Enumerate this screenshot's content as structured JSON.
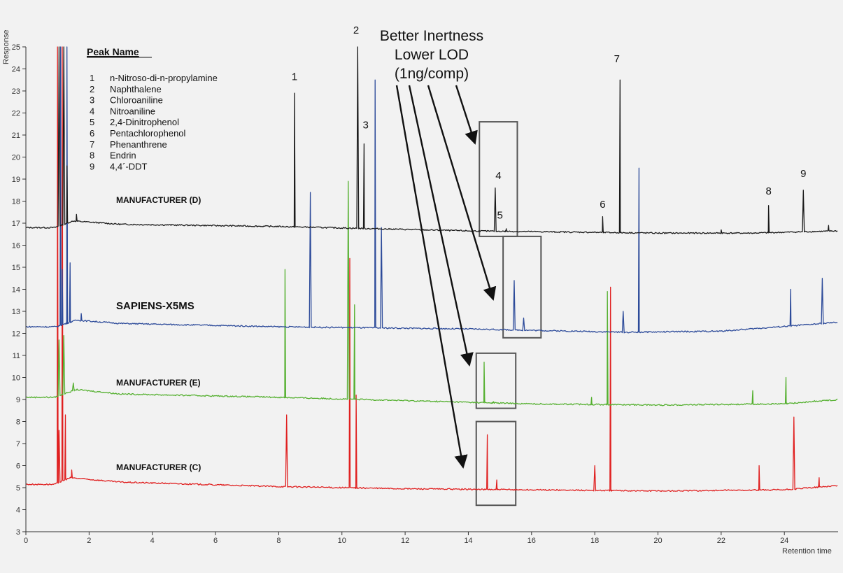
{
  "chart_data": {
    "type": "line",
    "xlabel": "Retention time",
    "ylabel": "Response",
    "xlim": [
      0,
      25.7
    ],
    "ylim": [
      3,
      25
    ],
    "x_ticks": [
      0,
      2,
      4,
      6,
      8,
      10,
      12,
      14,
      16,
      18,
      20,
      22,
      24
    ],
    "y_ticks": [
      3,
      4,
      5,
      6,
      7,
      8,
      9,
      10,
      11,
      12,
      13,
      14,
      15,
      16,
      17,
      18,
      19,
      20,
      21,
      22,
      23,
      24,
      25
    ],
    "legend": {
      "title": "Peak Name",
      "items": [
        {
          "num": "1",
          "name": "n-Nitroso-di-n-propylamine"
        },
        {
          "num": "2",
          "name": "Naphthalene"
        },
        {
          "num": "3",
          "name": "Chloroaniline"
        },
        {
          "num": "4",
          "name": "Nitroaniline"
        },
        {
          "num": "5",
          "name": "2,4-Dinitrophenol"
        },
        {
          "num": "6",
          "name": "Pentachlorophenol"
        },
        {
          "num": "7",
          "name": "Phenanthrene"
        },
        {
          "num": "8",
          "name": "Endrin"
        },
        {
          "num": "9",
          "name": "4,4´-DDT"
        }
      ]
    },
    "callout": [
      "Better Inertness",
      "Lower LOD",
      "(1ng/comp)"
    ],
    "series": [
      {
        "name": "MANUFACTURER (D)",
        "color": "#1a1a1a",
        "baseline": [
          [
            0.0,
            16.8
          ],
          [
            0.9,
            16.8
          ],
          [
            1.5,
            17.1
          ],
          [
            3,
            16.95
          ],
          [
            8,
            16.85
          ],
          [
            14,
            16.65
          ],
          [
            20,
            16.55
          ],
          [
            23,
            16.55
          ],
          [
            25.7,
            16.65
          ]
        ],
        "peaks": [
          [
            1.05,
            25.0
          ],
          [
            1.2,
            25.0
          ],
          [
            1.3,
            19.6
          ],
          [
            1.6,
            17.4
          ],
          [
            8.5,
            22.9
          ],
          [
            10.5,
            25.0
          ],
          [
            10.7,
            20.6
          ],
          [
            14.85,
            18.6
          ],
          [
            15.2,
            16.75
          ],
          [
            18.25,
            17.3
          ],
          [
            18.8,
            23.5
          ],
          [
            22,
            16.7
          ],
          [
            23.5,
            17.8
          ],
          [
            24.6,
            18.5
          ],
          [
            25.4,
            16.9
          ]
        ],
        "peak_labels": [
          {
            "num": "1",
            "x": 8.5,
            "y": 23.5
          },
          {
            "num": "2",
            "x": 10.45,
            "y": 25.6
          },
          {
            "num": "3",
            "x": 10.75,
            "y": 21.3
          },
          {
            "num": "4",
            "x": 14.95,
            "y": 19.0
          },
          {
            "num": "5",
            "x": 15.0,
            "y": 17.2
          },
          {
            "num": "6",
            "x": 18.25,
            "y": 17.7
          },
          {
            "num": "7",
            "x": 18.7,
            "y": 24.3
          },
          {
            "num": "8",
            "x": 23.5,
            "y": 18.3
          },
          {
            "num": "9",
            "x": 24.6,
            "y": 19.1
          }
        ]
      },
      {
        "name": "SAPIENS-X5MS",
        "color": "#2d4b9a",
        "baseline": [
          [
            0.0,
            12.3
          ],
          [
            0.95,
            12.3
          ],
          [
            1.6,
            12.6
          ],
          [
            3,
            12.45
          ],
          [
            8,
            12.3
          ],
          [
            14,
            12.2
          ],
          [
            19,
            12.05
          ],
          [
            22,
            12.1
          ],
          [
            25.7,
            12.5
          ]
        ],
        "peaks": [
          [
            1.1,
            25.0
          ],
          [
            1.15,
            14.9
          ],
          [
            1.3,
            25.0
          ],
          [
            1.4,
            15.2
          ],
          [
            1.75,
            12.9
          ],
          [
            9.0,
            18.4
          ],
          [
            11.05,
            23.5
          ],
          [
            11.25,
            16.8
          ],
          [
            15.45,
            14.4
          ],
          [
            15.75,
            12.7
          ],
          [
            18.9,
            13.0
          ],
          [
            19.4,
            19.5
          ],
          [
            24.2,
            14.0
          ],
          [
            25.2,
            14.5
          ]
        ]
      },
      {
        "name": "MANUFACTURER (E)",
        "color": "#55b030",
        "baseline": [
          [
            0.0,
            9.1
          ],
          [
            0.9,
            9.1
          ],
          [
            1.6,
            9.45
          ],
          [
            3,
            9.25
          ],
          [
            8,
            9.1
          ],
          [
            12,
            8.95
          ],
          [
            16,
            8.8
          ],
          [
            20,
            8.75
          ],
          [
            24,
            8.8
          ],
          [
            25.7,
            9.0
          ]
        ],
        "peaks": [
          [
            1.05,
            11.7
          ],
          [
            1.2,
            11.9
          ],
          [
            1.5,
            9.75
          ],
          [
            8.2,
            14.9
          ],
          [
            10.2,
            18.9
          ],
          [
            10.4,
            13.3
          ],
          [
            14.5,
            10.7
          ],
          [
            14.8,
            8.9
          ],
          [
            17.9,
            9.1
          ],
          [
            18.4,
            13.9
          ],
          [
            23.0,
            9.4
          ],
          [
            24.05,
            10.0
          ],
          [
            24.95,
            8.95
          ]
        ]
      },
      {
        "name": "MANUFACTURER (C)",
        "color": "#e02020",
        "baseline": [
          [
            0.0,
            5.15
          ],
          [
            0.9,
            5.15
          ],
          [
            1.4,
            5.45
          ],
          [
            3,
            5.25
          ],
          [
            8,
            5.05
          ],
          [
            12,
            4.95
          ],
          [
            16,
            4.9
          ],
          [
            20,
            4.85
          ],
          [
            24,
            4.9
          ],
          [
            25.7,
            5.1
          ]
        ],
        "peaks": [
          [
            1.0,
            25.0
          ],
          [
            1.05,
            7.6
          ],
          [
            1.15,
            25.0
          ],
          [
            1.25,
            8.3
          ],
          [
            1.45,
            5.8
          ],
          [
            8.25,
            8.3
          ],
          [
            10.25,
            15.4
          ],
          [
            10.45,
            9.2
          ],
          [
            14.6,
            7.4
          ],
          [
            14.9,
            5.35
          ],
          [
            18.0,
            6.0
          ],
          [
            18.5,
            14.1
          ],
          [
            23.2,
            6.0
          ],
          [
            24.3,
            8.2
          ],
          [
            25.1,
            5.45
          ]
        ]
      }
    ],
    "highlight_boxes": [
      {
        "x0": 14.35,
        "x1": 15.55,
        "y0": 16.4,
        "y1": 21.6
      },
      {
        "x0": 15.1,
        "x1": 16.3,
        "y0": 11.8,
        "y1": 16.4
      },
      {
        "x0": 14.25,
        "x1": 15.5,
        "y0": 8.6,
        "y1": 11.1
      },
      {
        "x0": 14.25,
        "x1": 15.5,
        "y0": 4.2,
        "y1": 8.0
      }
    ]
  }
}
